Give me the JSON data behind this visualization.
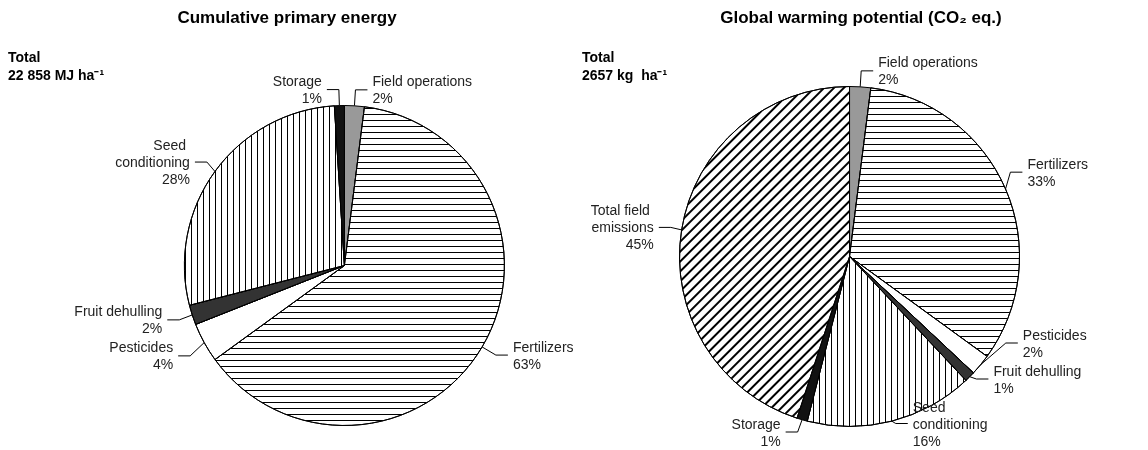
{
  "chart_data": [
    {
      "type": "pie",
      "title": "Cumulative primary energy",
      "annotations": [
        "Total",
        "22 858 MJ ha⁻¹"
      ],
      "categories": [
        "Field operations",
        "Fertilizers",
        "Pesticides",
        "Fruit dehulling",
        "Seed conditioning",
        "Storage"
      ],
      "values": [
        2,
        63,
        4,
        2,
        28,
        1
      ],
      "value_labels": [
        "2%",
        "63%",
        "4%",
        "2%",
        "28%",
        "1%"
      ],
      "colors": [
        "#999999",
        "#ffffff",
        "#ffffff",
        "#333333",
        "#ffffff",
        "#111111"
      ]
    },
    {
      "type": "pie",
      "title": "Global warming potential (CO₂ eq.)",
      "annotations": [
        "Total",
        "2657 kg  ha⁻¹"
      ],
      "categories": [
        "Field operations",
        "Fertilizers",
        "Pesticides",
        "Fruit dehulling",
        "Seed conditioning",
        "Storage",
        "Total field emissions"
      ],
      "values": [
        2,
        33,
        2,
        1,
        16,
        1,
        45
      ],
      "value_labels": [
        "2%",
        "33%",
        "2%",
        "1%",
        "16%",
        "1%",
        "45%"
      ],
      "colors": [
        "#999999",
        "#ffffff",
        "#ffffff",
        "#333333",
        "#ffffff",
        "#111111",
        "#ffffff"
      ]
    }
  ]
}
